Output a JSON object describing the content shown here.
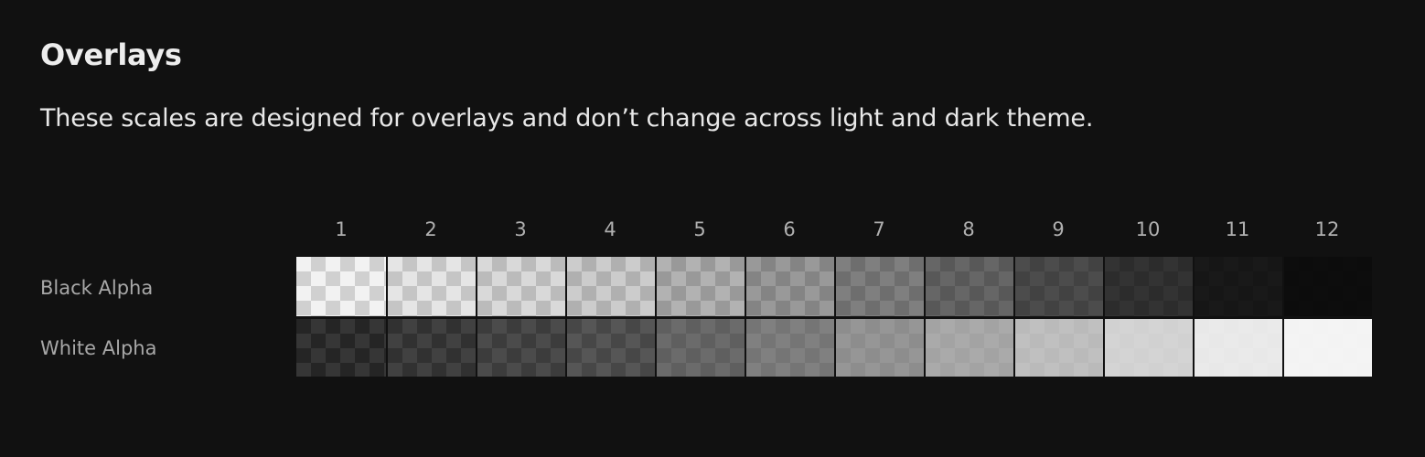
{
  "section": {
    "title": "Overlays",
    "description": "These scales are designed for overlays and don’t change across light and dark theme."
  },
  "scale": {
    "steps": [
      "1",
      "2",
      "3",
      "4",
      "5",
      "6",
      "7",
      "8",
      "9",
      "10",
      "11",
      "12"
    ]
  },
  "rows": [
    {
      "label": "Black Alpha",
      "base_color": "#000000",
      "alphas": [
        0.05,
        0.1,
        0.15,
        0.2,
        0.3,
        0.4,
        0.5,
        0.6,
        0.7,
        0.8,
        0.9,
        0.95
      ]
    },
    {
      "label": "White Alpha",
      "base_color": "#ffffff",
      "alphas": [
        0.05,
        0.1,
        0.15,
        0.2,
        0.3,
        0.4,
        0.5,
        0.6,
        0.7,
        0.8,
        0.9,
        0.95
      ]
    }
  ],
  "colors": {
    "background": "#111111",
    "heading": "#ededed",
    "muted_text": "#a8a8a8"
  }
}
